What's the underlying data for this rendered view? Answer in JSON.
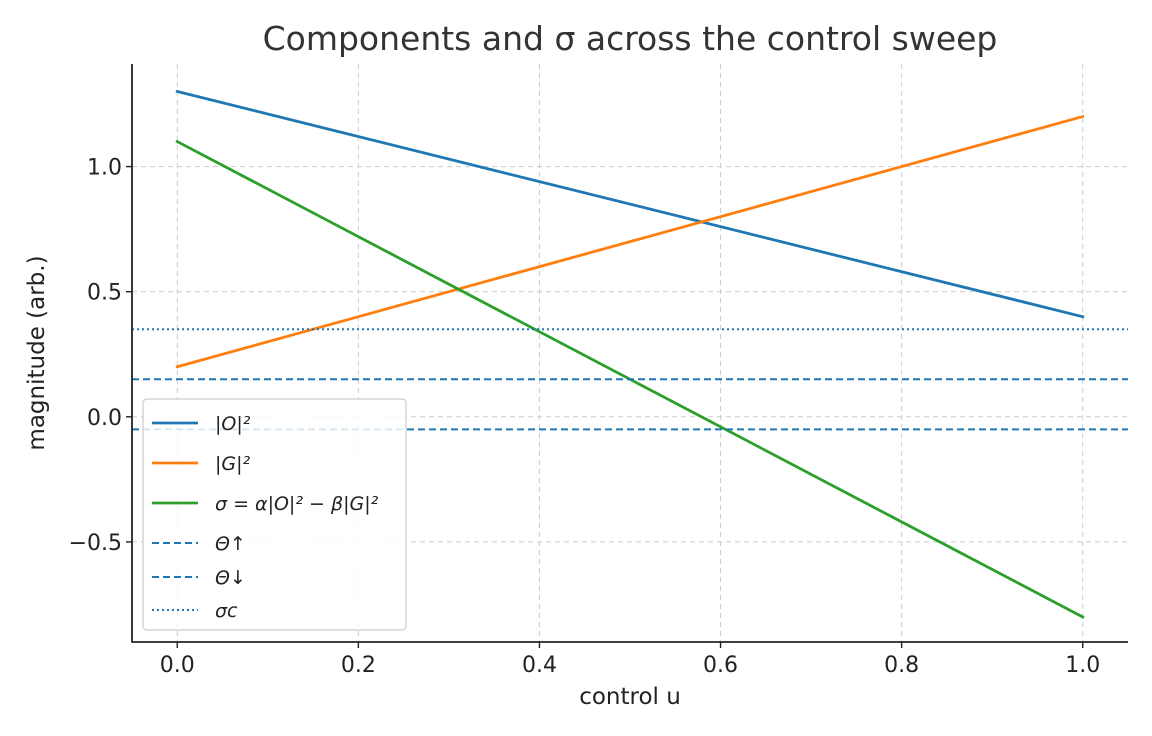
{
  "chart_data": {
    "type": "line",
    "title": "Components and σ across the control sweep",
    "xlabel": "control u",
    "ylabel": "magnitude (arb.)",
    "xlim": [
      -0.05,
      1.05
    ],
    "ylim": [
      -0.9,
      1.41
    ],
    "xticks": [
      0.0,
      0.2,
      0.4,
      0.6,
      0.8,
      1.0
    ],
    "xtick_labels": [
      "0.0",
      "0.2",
      "0.4",
      "0.6",
      "0.8",
      "1.0"
    ],
    "yticks": [
      -0.5,
      0.0,
      0.5,
      1.0
    ],
    "ytick_labels": [
      "−0.5",
      "0.0",
      "0.5",
      "1.0"
    ],
    "grid": true,
    "legend_position": "lower-left",
    "series": [
      {
        "name": "|O|²",
        "legend_html": "|<tspan>O</tspan>|<tspan class='sup'>2</tspan>",
        "color": "#1f77b4",
        "style": "solid",
        "x": [
          0.0,
          1.0
        ],
        "y": [
          1.3,
          0.4
        ]
      },
      {
        "name": "|G|²",
        "color": "#ff7f0e",
        "style": "solid",
        "x": [
          0.0,
          1.0
        ],
        "y": [
          0.2,
          1.2
        ]
      },
      {
        "name": "σ = α|O|² − β|G|²",
        "color": "#2ca02c",
        "style": "solid",
        "x": [
          0.0,
          1.0
        ],
        "y": [
          1.1,
          -0.8
        ]
      },
      {
        "name": "Θ↑",
        "color": "#1f77b4",
        "style": "dashed",
        "hline": 0.15
      },
      {
        "name": "Θ↓",
        "color": "#1f77b4",
        "style": "dashed",
        "hline": -0.05
      },
      {
        "name": "σc",
        "color": "#1f77b4",
        "style": "dotted",
        "hline": 0.35
      }
    ]
  }
}
